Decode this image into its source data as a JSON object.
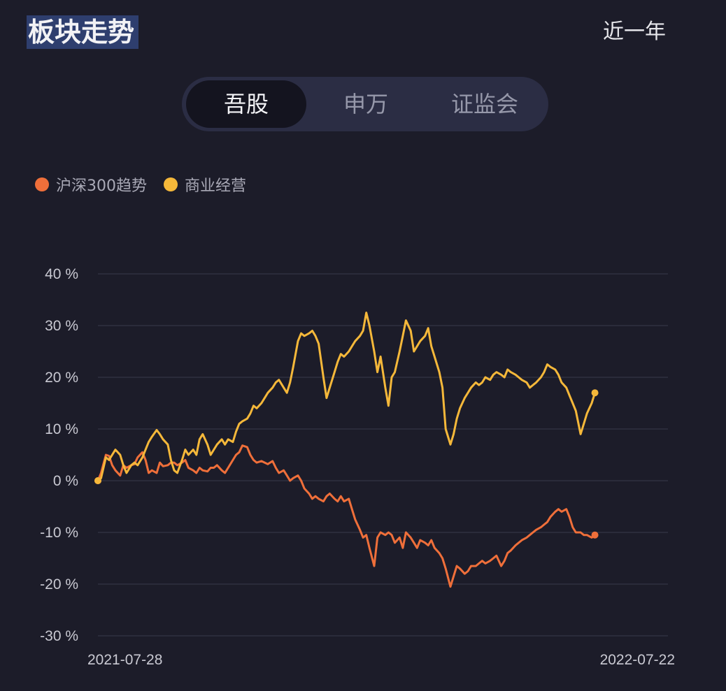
{
  "header": {
    "title": "板块走势",
    "range": "近一年"
  },
  "tabs": [
    {
      "label": "吾股",
      "active": true
    },
    {
      "label": "申万",
      "active": false
    },
    {
      "label": "证监会",
      "active": false
    }
  ],
  "chart_data": {
    "type": "line",
    "x_start": "2021-07-28",
    "x_end": "2022-07-22",
    "ylim": [
      -30,
      40
    ],
    "yticks": [
      40,
      30,
      20,
      10,
      0,
      -10,
      -20,
      -30
    ],
    "ytick_labels": [
      "40 %",
      "30 %",
      "20 %",
      "10 %",
      "0 %",
      "-10 %",
      "-20 %",
      "-30 %"
    ],
    "xtick_labels": [
      "2021-07-28",
      "2022-07-22"
    ],
    "grid": true,
    "legend": "top-left",
    "series": [
      {
        "name": "沪深300趋势",
        "color": "#ef6f3a",
        "points": [
          [
            0,
            0
          ],
          [
            2,
            1.5
          ],
          [
            5,
            5
          ],
          [
            7,
            4.8
          ],
          [
            9,
            3
          ],
          [
            11,
            2
          ],
          [
            14,
            1
          ],
          [
            16,
            3
          ],
          [
            18,
            2.5
          ],
          [
            21,
            3
          ],
          [
            23,
            3.2
          ],
          [
            25,
            4.5
          ],
          [
            28,
            5.5
          ],
          [
            30,
            4
          ],
          [
            32,
            1.5
          ],
          [
            34,
            2
          ],
          [
            37,
            1.5
          ],
          [
            39,
            3.5
          ],
          [
            41,
            2.8
          ],
          [
            44,
            3
          ],
          [
            46,
            3.5
          ],
          [
            48,
            3.5
          ],
          [
            50,
            3
          ],
          [
            53,
            3.5
          ],
          [
            55,
            4
          ],
          [
            57,
            2.5
          ],
          [
            60,
            2
          ],
          [
            62,
            1.5
          ],
          [
            64,
            2.5
          ],
          [
            66,
            2
          ],
          [
            69,
            1.8
          ],
          [
            71,
            2.5
          ],
          [
            73,
            2.5
          ],
          [
            75,
            3
          ],
          [
            78,
            2
          ],
          [
            80,
            1.5
          ],
          [
            82,
            2.5
          ],
          [
            85,
            4
          ],
          [
            87,
            5
          ],
          [
            89,
            5.5
          ],
          [
            91,
            6.8
          ],
          [
            94,
            6.5
          ],
          [
            96,
            5
          ],
          [
            98,
            4
          ],
          [
            100,
            3.5
          ],
          [
            103,
            3.8
          ],
          [
            105,
            3.5
          ],
          [
            107,
            3.2
          ],
          [
            110,
            3.8
          ],
          [
            112,
            2.5
          ],
          [
            114,
            1.5
          ],
          [
            117,
            2
          ],
          [
            119,
            1
          ],
          [
            121,
            0
          ],
          [
            123,
            0.5
          ],
          [
            126,
            1
          ],
          [
            128,
            0
          ],
          [
            130,
            -1.5
          ],
          [
            133,
            -2.5
          ],
          [
            135,
            -3.5
          ],
          [
            137,
            -3
          ],
          [
            139,
            -3.5
          ],
          [
            142,
            -4
          ],
          [
            144,
            -3
          ],
          [
            146,
            -2.5
          ],
          [
            149,
            -3.5
          ],
          [
            151,
            -4
          ],
          [
            153,
            -3
          ],
          [
            155,
            -4
          ],
          [
            158,
            -3.5
          ],
          [
            160,
            -5.5
          ],
          [
            162,
            -7.5
          ],
          [
            165,
            -9.5
          ],
          [
            167,
            -11
          ],
          [
            169,
            -10.5
          ],
          [
            171,
            -13
          ],
          [
            174,
            -16.5
          ],
          [
            176,
            -11
          ],
          [
            178,
            -10
          ],
          [
            181,
            -10.5
          ],
          [
            183,
            -10
          ],
          [
            185,
            -10.5
          ],
          [
            187,
            -12
          ],
          [
            190,
            -11
          ],
          [
            192,
            -13
          ],
          [
            194,
            -10
          ],
          [
            197,
            -11
          ],
          [
            199,
            -12
          ],
          [
            201,
            -13
          ],
          [
            203,
            -11.5
          ],
          [
            206,
            -12
          ],
          [
            208,
            -12.5
          ],
          [
            210,
            -11.5
          ],
          [
            212,
            -13
          ],
          [
            215,
            -14
          ],
          [
            217,
            -15
          ],
          [
            219,
            -17
          ],
          [
            222,
            -20.5
          ],
          [
            224,
            -18.5
          ],
          [
            226,
            -16.5
          ],
          [
            228,
            -17
          ],
          [
            231,
            -18
          ],
          [
            233,
            -17.5
          ],
          [
            235,
            -16.5
          ],
          [
            238,
            -16.5
          ],
          [
            240,
            -16
          ],
          [
            242,
            -15.5
          ],
          [
            244,
            -16
          ],
          [
            247,
            -15.5
          ],
          [
            249,
            -15
          ],
          [
            251,
            -14.5
          ],
          [
            254,
            -16.5
          ],
          [
            256,
            -15.5
          ],
          [
            258,
            -14
          ],
          [
            260,
            -13.5
          ],
          [
            263,
            -12.5
          ],
          [
            265,
            -12
          ],
          [
            267,
            -11.5
          ],
          [
            270,
            -11
          ],
          [
            272,
            -10.5
          ],
          [
            274,
            -10
          ],
          [
            276,
            -9.5
          ],
          [
            279,
            -9
          ],
          [
            281,
            -8.5
          ],
          [
            283,
            -8
          ],
          [
            285,
            -7
          ],
          [
            288,
            -6
          ],
          [
            290,
            -5.5
          ],
          [
            292,
            -6
          ],
          [
            295,
            -5.5
          ],
          [
            297,
            -7
          ],
          [
            299,
            -9
          ],
          [
            301,
            -10
          ],
          [
            304,
            -10
          ],
          [
            306,
            -10.5
          ],
          [
            308,
            -10.5
          ],
          [
            311,
            -11
          ],
          [
            313,
            -10.5
          ]
        ]
      },
      {
        "name": "商业经营",
        "color": "#f5b83a",
        "points": [
          [
            0,
            0
          ],
          [
            2,
            0.5
          ],
          [
            5,
            4.5
          ],
          [
            7,
            4
          ],
          [
            9,
            5
          ],
          [
            11,
            6
          ],
          [
            14,
            5
          ],
          [
            16,
            3
          ],
          [
            18,
            1.5
          ],
          [
            21,
            3
          ],
          [
            23,
            3.5
          ],
          [
            25,
            3
          ],
          [
            28,
            4.5
          ],
          [
            30,
            6
          ],
          [
            32,
            7.5
          ],
          [
            34,
            8.5
          ],
          [
            37,
            9.8
          ],
          [
            39,
            9
          ],
          [
            41,
            8
          ],
          [
            44,
            7
          ],
          [
            46,
            4
          ],
          [
            48,
            2
          ],
          [
            50,
            1.5
          ],
          [
            53,
            4
          ],
          [
            55,
            6
          ],
          [
            57,
            5
          ],
          [
            60,
            6
          ],
          [
            62,
            5
          ],
          [
            64,
            8
          ],
          [
            66,
            9
          ],
          [
            69,
            7
          ],
          [
            71,
            5
          ],
          [
            73,
            6
          ],
          [
            75,
            7
          ],
          [
            78,
            8
          ],
          [
            80,
            7
          ],
          [
            82,
            8
          ],
          [
            85,
            7.5
          ],
          [
            87,
            9.5
          ],
          [
            89,
            11
          ],
          [
            91,
            11.5
          ],
          [
            94,
            12
          ],
          [
            96,
            13
          ],
          [
            98,
            14.5
          ],
          [
            100,
            14
          ],
          [
            103,
            15
          ],
          [
            105,
            16
          ],
          [
            107,
            17
          ],
          [
            110,
            18
          ],
          [
            112,
            19
          ],
          [
            114,
            19.5
          ],
          [
            117,
            18
          ],
          [
            119,
            17
          ],
          [
            121,
            19
          ],
          [
            123,
            22
          ],
          [
            126,
            27
          ],
          [
            128,
            28.5
          ],
          [
            130,
            28
          ],
          [
            133,
            28.5
          ],
          [
            135,
            29
          ],
          [
            137,
            28
          ],
          [
            139,
            26.5
          ],
          [
            142,
            20
          ],
          [
            144,
            16
          ],
          [
            146,
            18
          ],
          [
            149,
            21
          ],
          [
            151,
            23
          ],
          [
            153,
            24.5
          ],
          [
            155,
            24
          ],
          [
            158,
            25
          ],
          [
            160,
            26
          ],
          [
            162,
            27
          ],
          [
            165,
            28
          ],
          [
            167,
            29
          ],
          [
            169,
            32.5
          ],
          [
            171,
            30
          ],
          [
            174,
            25
          ],
          [
            176,
            21
          ],
          [
            178,
            24
          ],
          [
            181,
            18
          ],
          [
            183,
            14.5
          ],
          [
            185,
            20
          ],
          [
            187,
            21
          ],
          [
            190,
            25
          ],
          [
            192,
            28
          ],
          [
            194,
            31
          ],
          [
            197,
            29
          ],
          [
            199,
            25
          ],
          [
            201,
            26
          ],
          [
            203,
            27
          ],
          [
            206,
            28
          ],
          [
            208,
            29.5
          ],
          [
            210,
            26
          ],
          [
            212,
            24
          ],
          [
            215,
            21
          ],
          [
            217,
            18
          ],
          [
            219,
            10
          ],
          [
            222,
            7
          ],
          [
            224,
            9
          ],
          [
            226,
            12
          ],
          [
            228,
            14
          ],
          [
            231,
            16
          ],
          [
            233,
            17
          ],
          [
            235,
            18
          ],
          [
            238,
            19
          ],
          [
            240,
            18.5
          ],
          [
            242,
            19
          ],
          [
            244,
            20
          ],
          [
            247,
            19.5
          ],
          [
            249,
            20.5
          ],
          [
            251,
            21
          ],
          [
            254,
            20.5
          ],
          [
            256,
            20
          ],
          [
            258,
            21.5
          ],
          [
            260,
            21
          ],
          [
            263,
            20.5
          ],
          [
            265,
            20
          ],
          [
            267,
            19.5
          ],
          [
            270,
            19
          ],
          [
            272,
            18
          ],
          [
            274,
            18.5
          ],
          [
            276,
            19
          ],
          [
            279,
            20
          ],
          [
            281,
            21
          ],
          [
            283,
            22.5
          ],
          [
            285,
            22
          ],
          [
            288,
            21.5
          ],
          [
            290,
            20.5
          ],
          [
            292,
            19
          ],
          [
            295,
            18
          ],
          [
            297,
            16.5
          ],
          [
            299,
            15
          ],
          [
            301,
            13.5
          ],
          [
            304,
            9
          ],
          [
            306,
            11
          ],
          [
            308,
            13
          ],
          [
            311,
            15
          ],
          [
            313,
            17
          ]
        ]
      }
    ]
  }
}
